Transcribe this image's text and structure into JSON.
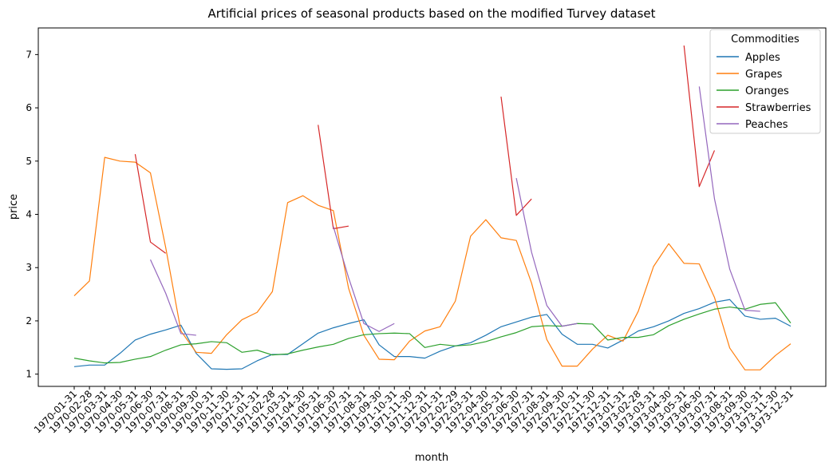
{
  "chart_data": {
    "type": "line",
    "title": "Artificial prices of seasonal products based on the modified Turvey dataset",
    "xlabel": "month",
    "ylabel": "price",
    "ylim": [
      0.77,
      7.5
    ],
    "yticks": [
      1,
      2,
      3,
      4,
      5,
      6,
      7
    ],
    "grid": false,
    "legend": {
      "title": "Commodities",
      "placement": "top-right"
    },
    "x": [
      "1970-01-31",
      "1970-02-28",
      "1970-03-31",
      "1970-04-30",
      "1970-05-31",
      "1970-06-30",
      "1970-07-31",
      "1970-08-31",
      "1970-09-30",
      "1970-10-31",
      "1970-11-30",
      "1970-12-31",
      "1971-01-31",
      "1971-02-28",
      "1971-03-31",
      "1971-04-30",
      "1971-05-31",
      "1971-06-30",
      "1971-07-31",
      "1971-08-31",
      "1971-09-30",
      "1971-10-31",
      "1971-11-30",
      "1971-12-31",
      "1972-01-31",
      "1972-02-29",
      "1972-03-31",
      "1972-04-30",
      "1972-05-31",
      "1972-06-30",
      "1972-07-31",
      "1972-08-31",
      "1972-09-30",
      "1972-10-31",
      "1972-11-30",
      "1972-12-31",
      "1973-01-31",
      "1973-02-28",
      "1973-03-31",
      "1973-04-30",
      "1973-05-31",
      "1973-06-30",
      "1973-07-31",
      "1973-08-31",
      "1973-09-30",
      "1973-10-31",
      "1973-11-30",
      "1973-12-31"
    ],
    "series": [
      {
        "name": "Apples",
        "color": "#1f77b4",
        "values": [
          1.14,
          1.17,
          1.17,
          1.39,
          1.64,
          1.75,
          1.83,
          1.92,
          1.39,
          1.1,
          1.09,
          1.1,
          1.25,
          1.37,
          1.37,
          1.57,
          1.77,
          1.87,
          1.95,
          2.02,
          1.55,
          1.33,
          1.33,
          1.3,
          1.43,
          1.53,
          1.59,
          1.73,
          1.89,
          1.98,
          2.07,
          2.12,
          1.75,
          1.56,
          1.56,
          1.49,
          1.64,
          1.81,
          1.89,
          2.0,
          2.14,
          2.23,
          2.35,
          2.4,
          2.09,
          2.03,
          2.05,
          1.9
        ]
      },
      {
        "name": "Grapes",
        "color": "#ff7f0e",
        "values": [
          2.47,
          2.75,
          5.07,
          5.0,
          4.98,
          4.78,
          3.38,
          1.81,
          1.41,
          1.39,
          1.74,
          2.02,
          2.16,
          2.55,
          4.22,
          4.35,
          4.17,
          4.07,
          2.61,
          1.73,
          1.28,
          1.27,
          1.62,
          1.81,
          1.89,
          2.37,
          3.59,
          3.9,
          3.56,
          3.51,
          2.71,
          1.65,
          1.15,
          1.15,
          1.47,
          1.73,
          1.62,
          2.18,
          3.02,
          3.45,
          3.08,
          3.07,
          2.44,
          1.49,
          1.08,
          1.08,
          1.35,
          1.57
        ]
      },
      {
        "name": "Oranges",
        "color": "#2ca02c",
        "values": [
          1.3,
          1.25,
          1.21,
          1.22,
          1.28,
          1.33,
          1.45,
          1.55,
          1.57,
          1.61,
          1.59,
          1.41,
          1.45,
          1.36,
          1.38,
          1.45,
          1.51,
          1.56,
          1.67,
          1.74,
          1.76,
          1.77,
          1.76,
          1.5,
          1.56,
          1.53,
          1.55,
          1.61,
          1.7,
          1.78,
          1.89,
          1.91,
          1.9,
          1.95,
          1.94,
          1.64,
          1.69,
          1.69,
          1.74,
          1.91,
          2.03,
          2.13,
          2.22,
          2.26,
          2.22,
          2.31,
          2.34,
          1.96
        ]
      },
      {
        "name": "Strawberries",
        "color": "#d62728",
        "values": [
          null,
          null,
          null,
          null,
          5.13,
          3.48,
          3.27,
          null,
          null,
          null,
          null,
          null,
          null,
          null,
          null,
          null,
          5.68,
          3.73,
          3.78,
          null,
          null,
          null,
          null,
          null,
          null,
          null,
          null,
          null,
          6.21,
          3.98,
          4.29,
          null,
          null,
          null,
          null,
          null,
          null,
          null,
          null,
          null,
          7.17,
          4.52,
          5.2,
          null,
          null,
          null,
          null,
          null
        ]
      },
      {
        "name": "Peaches",
        "color": "#9467bd",
        "values": [
          null,
          null,
          null,
          null,
          null,
          3.15,
          2.52,
          1.76,
          1.73,
          null,
          null,
          null,
          null,
          null,
          null,
          null,
          null,
          3.77,
          2.81,
          1.95,
          1.8,
          1.95,
          null,
          null,
          null,
          null,
          null,
          null,
          null,
          4.68,
          3.29,
          2.29,
          1.9,
          1.95,
          null,
          null,
          null,
          null,
          null,
          null,
          null,
          6.4,
          4.29,
          2.97,
          2.2,
          2.18,
          null,
          null
        ]
      }
    ]
  }
}
